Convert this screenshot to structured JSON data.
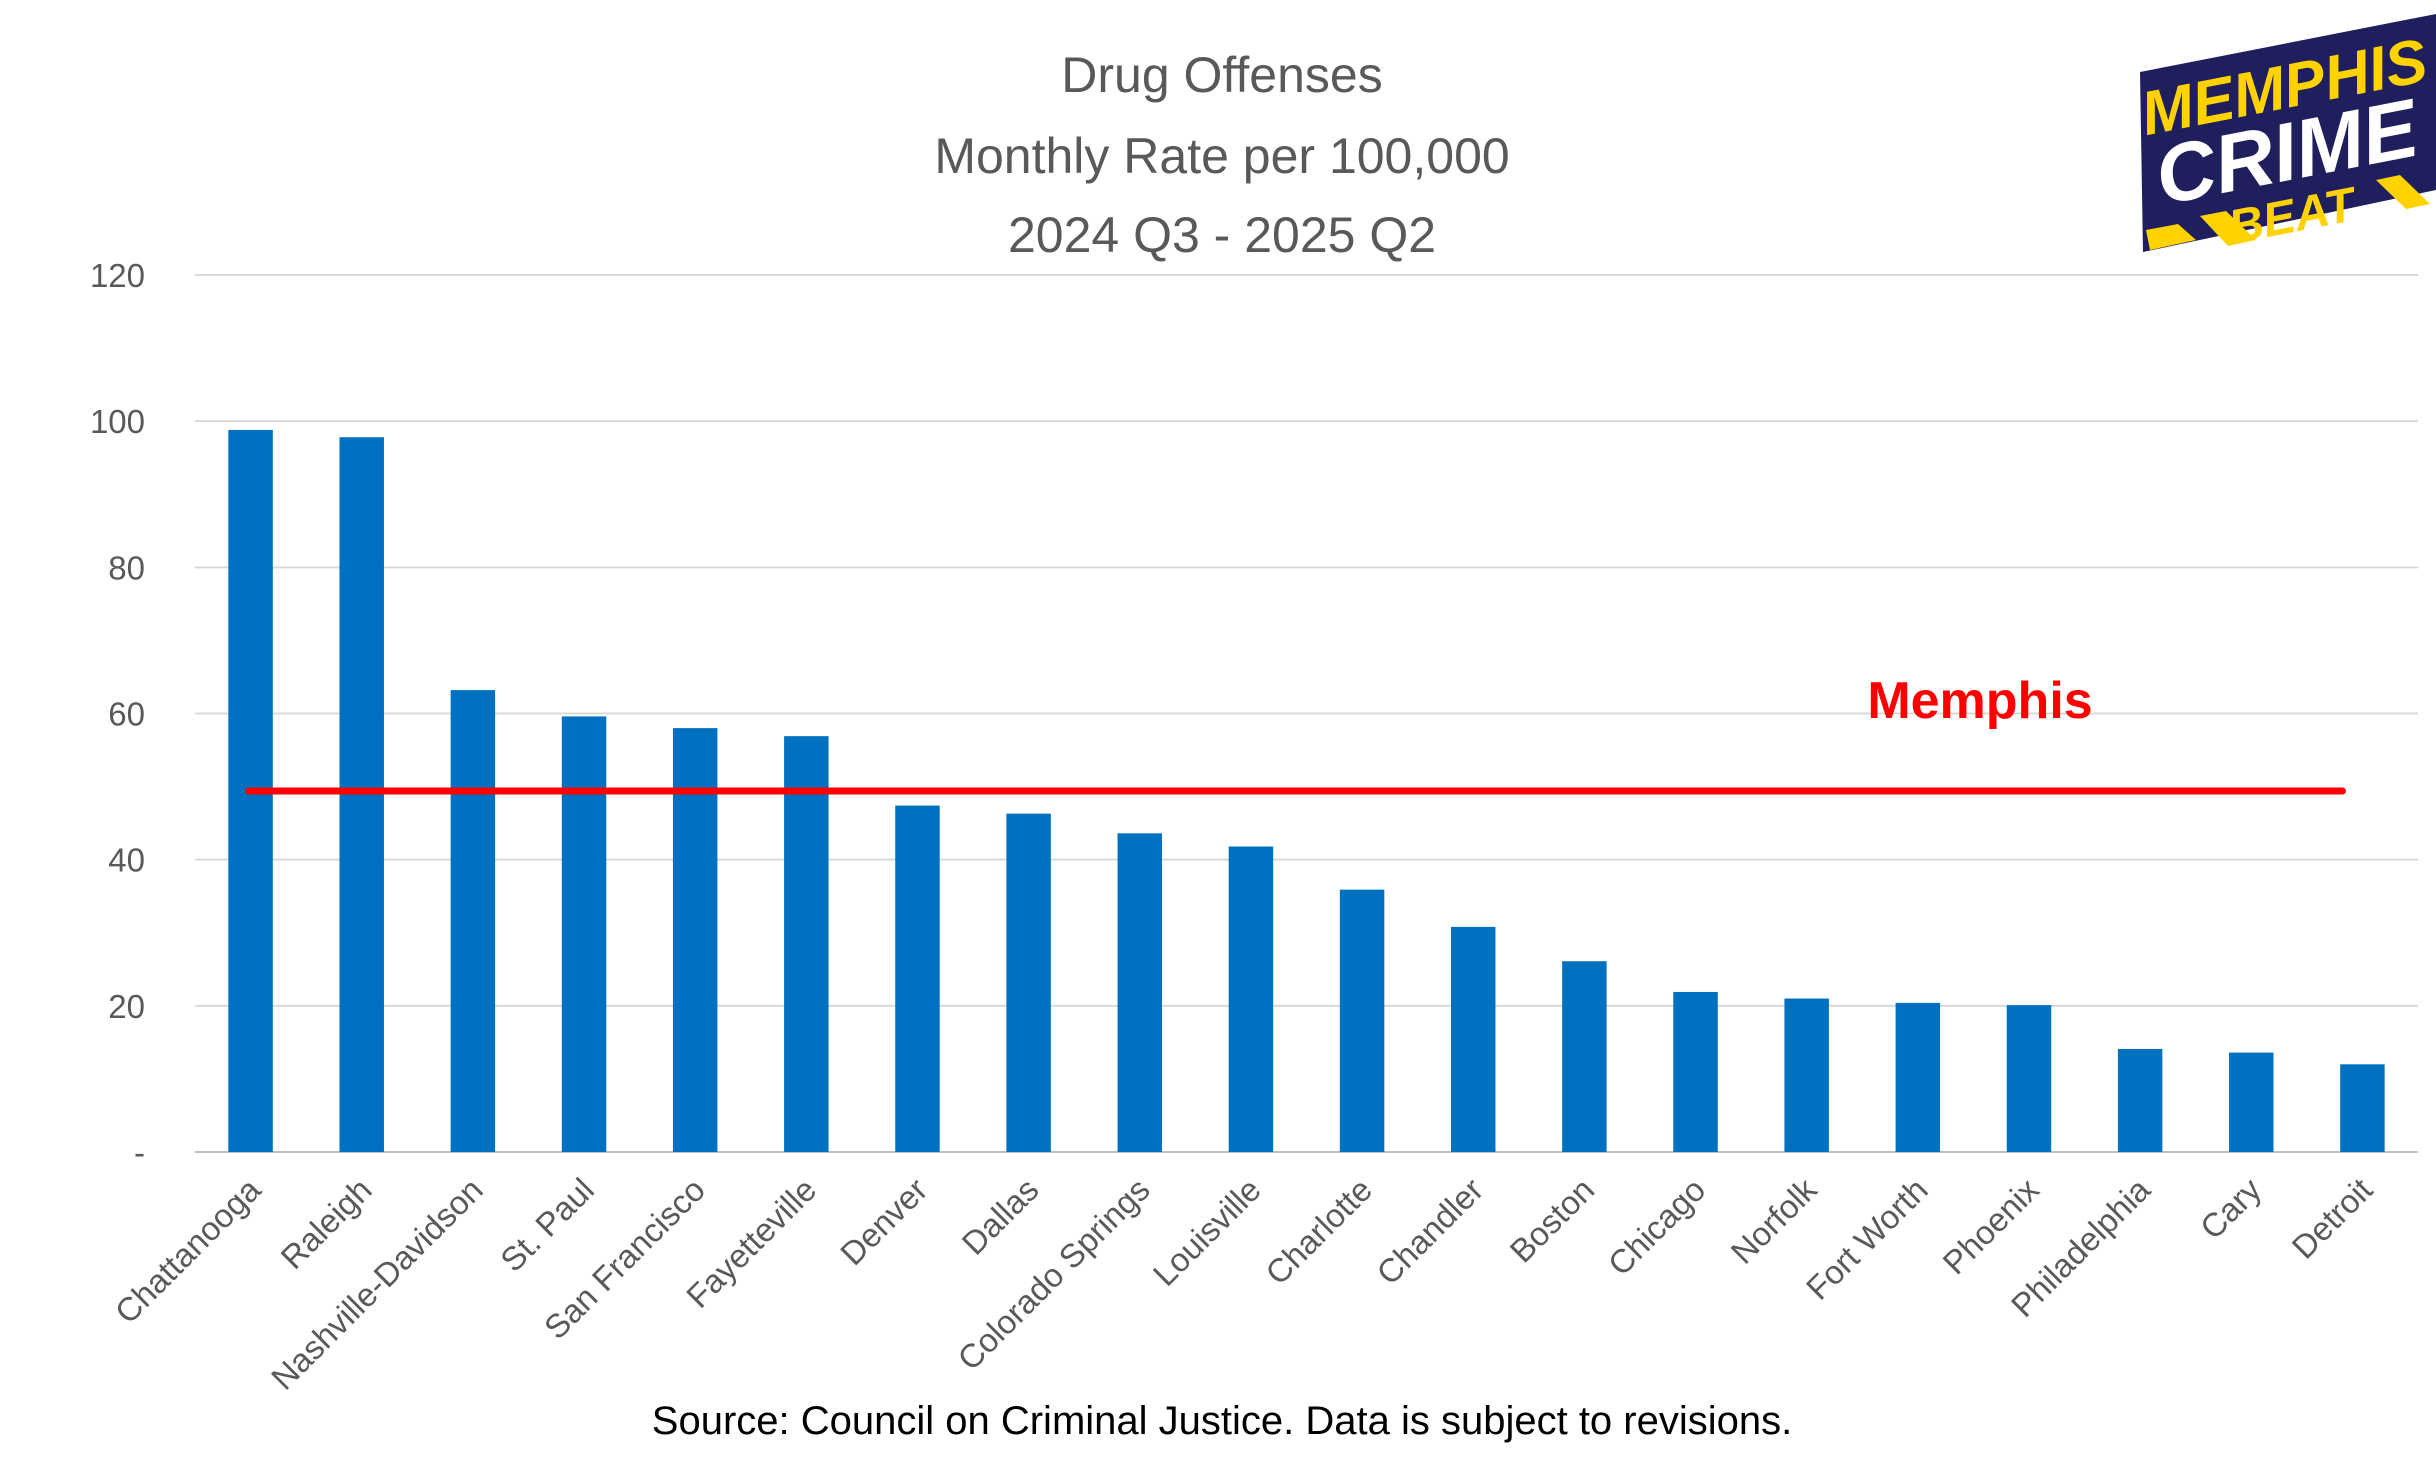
{
  "chart_data": {
    "type": "bar",
    "title_lines": [
      "Drug Offenses",
      "Monthly Rate per 100,000",
      "2024 Q3 - 2025 Q2"
    ],
    "categories": [
      "Chattanooga",
      "Raleigh",
      "Nashville-Davidson",
      "St. Paul",
      "San Francisco",
      "Fayetteville",
      "Denver",
      "Dallas",
      "Colorado Springs",
      "Louisville",
      "Charlotte",
      "Chandler",
      "Boston",
      "Chicago",
      "Norfolk",
      "Fort Worth",
      "Phoenix",
      "Philadelphia",
      "Cary",
      "Detroit"
    ],
    "values": [
      98.8,
      97.8,
      63.2,
      59.6,
      58.0,
      56.9,
      47.4,
      46.3,
      43.6,
      41.8,
      35.9,
      30.8,
      26.1,
      21.9,
      21.0,
      20.4,
      20.1,
      14.1,
      13.6,
      12.0
    ],
    "ylim": [
      0,
      120
    ],
    "yticks": [
      0,
      20,
      40,
      60,
      80,
      100,
      120
    ],
    "ytick_labels": [
      "-",
      "20",
      "40",
      "60",
      "80",
      "100",
      "120"
    ],
    "grid": true,
    "reference_line": {
      "label": "Memphis",
      "value": 49.4,
      "color": "#ff0000"
    },
    "source_note": "Source: Council on Criminal Justice.  Data is subject to revisions.",
    "bar_color": "#0070c0"
  },
  "logo": {
    "line1": "MEMPHIS",
    "line2": "CRIME",
    "line3": "BEAT",
    "colors": {
      "background": "#1e1f5c",
      "text": "#ffffff",
      "accent": "#ffd200"
    }
  }
}
